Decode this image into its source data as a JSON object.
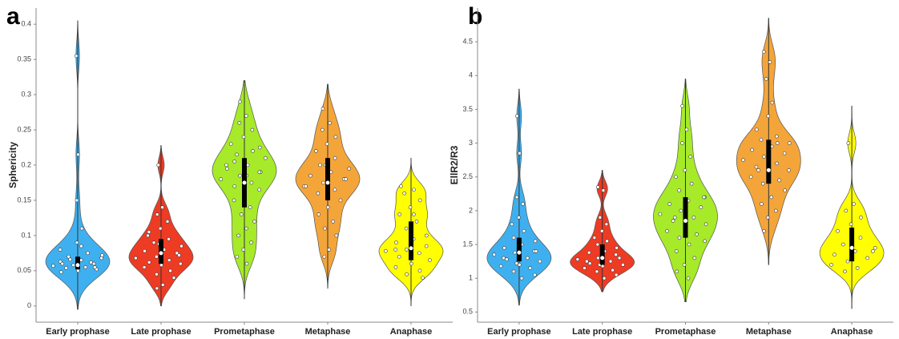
{
  "chart_data": [
    {
      "type": "violin",
      "panel_label": "a",
      "ylabel": "Sphericity",
      "categories": [
        "Early prophase",
        "Late prophase",
        "Prometaphase",
        "Metaphase",
        "Anaphase"
      ],
      "colors": [
        "#3fb0ef",
        "#ee3b24",
        "#a6ea2a",
        "#f4a53a",
        "#ffff00"
      ],
      "points": [
        [
          0.355,
          0.215,
          0.15,
          0.11,
          0.09,
          0.08,
          0.075,
          0.07,
          0.068,
          0.065,
          0.063,
          0.06,
          0.058,
          0.057,
          0.055,
          0.054,
          0.052,
          0.05,
          0.048,
          0.062,
          0.066,
          0.072,
          0.085,
          0.06,
          0.055
        ],
        [
          0.2,
          0.14,
          0.13,
          0.12,
          0.11,
          0.1,
          0.095,
          0.09,
          0.085,
          0.08,
          0.078,
          0.075,
          0.07,
          0.068,
          0.065,
          0.062,
          0.06,
          0.058,
          0.055,
          0.05,
          0.045,
          0.04,
          0.03,
          0.025,
          0.072,
          0.088,
          0.105
        ],
        [
          0.29,
          0.27,
          0.26,
          0.25,
          0.24,
          0.23,
          0.22,
          0.215,
          0.21,
          0.2,
          0.195,
          0.19,
          0.185,
          0.18,
          0.175,
          0.17,
          0.165,
          0.16,
          0.15,
          0.14,
          0.13,
          0.12,
          0.11,
          0.1,
          0.09,
          0.08,
          0.07,
          0.06,
          0.205,
          0.225,
          0.185,
          0.2,
          0.19
        ],
        [
          0.28,
          0.26,
          0.25,
          0.24,
          0.23,
          0.22,
          0.21,
          0.2,
          0.195,
          0.19,
          0.185,
          0.18,
          0.175,
          0.17,
          0.165,
          0.16,
          0.15,
          0.14,
          0.13,
          0.12,
          0.11,
          0.1,
          0.08,
          0.07,
          0.18,
          0.2,
          0.17
        ],
        [
          0.17,
          0.165,
          0.16,
          0.15,
          0.14,
          0.13,
          0.12,
          0.11,
          0.1,
          0.095,
          0.09,
          0.085,
          0.08,
          0.078,
          0.075,
          0.07,
          0.065,
          0.06,
          0.055,
          0.05,
          0.045,
          0.04,
          0.13,
          0.08
        ]
      ],
      "q1": [
        0.052,
        0.06,
        0.14,
        0.15,
        0.065
      ],
      "median": [
        0.058,
        0.075,
        0.175,
        0.175,
        0.082
      ],
      "q3": [
        0.07,
        0.095,
        0.21,
        0.21,
        0.12
      ],
      "whisker_low": [
        -0.005,
        0.0,
        0.01,
        0.025,
        0.0
      ],
      "whisker_high": [
        0.405,
        0.228,
        0.32,
        0.315,
        0.21
      ],
      "ylim": [
        -0.023,
        0.423
      ],
      "yticks": [
        0,
        0.05,
        0.1,
        0.15,
        0.2,
        0.25,
        0.3,
        0.35,
        0.4
      ]
    },
    {
      "type": "violin",
      "panel_label": "b",
      "ylabel": "EllR2/R3",
      "categories": [
        "Early prophase",
        "Late prophase",
        "Prometaphase",
        "Metaphase",
        "Anaphase"
      ],
      "colors": [
        "#3fb0ef",
        "#ee3b24",
        "#a6ea2a",
        "#f4a53a",
        "#ffff00"
      ],
      "points": [
        [
          3.4,
          2.85,
          2.2,
          2.1,
          1.9,
          1.8,
          1.7,
          1.6,
          1.55,
          1.5,
          1.45,
          1.4,
          1.38,
          1.35,
          1.3,
          1.28,
          1.25,
          1.2,
          1.18,
          1.15,
          1.1,
          1.05,
          1.0,
          1.3,
          1.4,
          1.22
        ],
        [
          2.35,
          2.3,
          1.9,
          1.8,
          1.7,
          1.6,
          1.55,
          1.5,
          1.45,
          1.4,
          1.38,
          1.35,
          1.3,
          1.28,
          1.25,
          1.22,
          1.2,
          1.18,
          1.15,
          1.12,
          1.1,
          1.05,
          1.0,
          1.25,
          1.3,
          1.2
        ],
        [
          3.55,
          3.2,
          3.0,
          2.8,
          2.6,
          2.5,
          2.4,
          2.3,
          2.2,
          2.15,
          2.1,
          2.05,
          2.0,
          1.95,
          1.9,
          1.85,
          1.8,
          1.75,
          1.7,
          1.65,
          1.6,
          1.55,
          1.5,
          1.4,
          1.3,
          1.2,
          1.1,
          1.0,
          1.9,
          2.2
        ],
        [
          4.35,
          4.2,
          3.95,
          3.6,
          3.4,
          3.2,
          3.1,
          3.05,
          3.0,
          2.95,
          2.9,
          2.85,
          2.8,
          2.75,
          2.7,
          2.65,
          2.6,
          2.55,
          2.5,
          2.45,
          2.4,
          2.3,
          2.2,
          2.1,
          2.0,
          1.9,
          1.7,
          3.0,
          2.6
        ],
        [
          3.0,
          2.1,
          2.0,
          1.9,
          1.8,
          1.7,
          1.6,
          1.5,
          1.45,
          1.4,
          1.35,
          1.3,
          1.25,
          1.2,
          1.15,
          1.1,
          1.4,
          1.6
        ]
      ],
      "q1": [
        1.25,
        1.2,
        1.6,
        2.4,
        1.25
      ],
      "median": [
        1.38,
        1.3,
        1.85,
        2.6,
        1.45
      ],
      "q3": [
        1.6,
        1.5,
        2.2,
        3.05,
        1.75
      ],
      "whisker_low": [
        0.6,
        0.8,
        0.65,
        1.2,
        0.55
      ],
      "whisker_high": [
        3.8,
        2.6,
        3.95,
        4.85,
        3.55
      ],
      "ylim": [
        0.35,
        5.0
      ],
      "yticks": [
        0.5,
        1,
        1.5,
        2,
        2.5,
        3,
        3.5,
        4,
        4.5
      ]
    }
  ]
}
